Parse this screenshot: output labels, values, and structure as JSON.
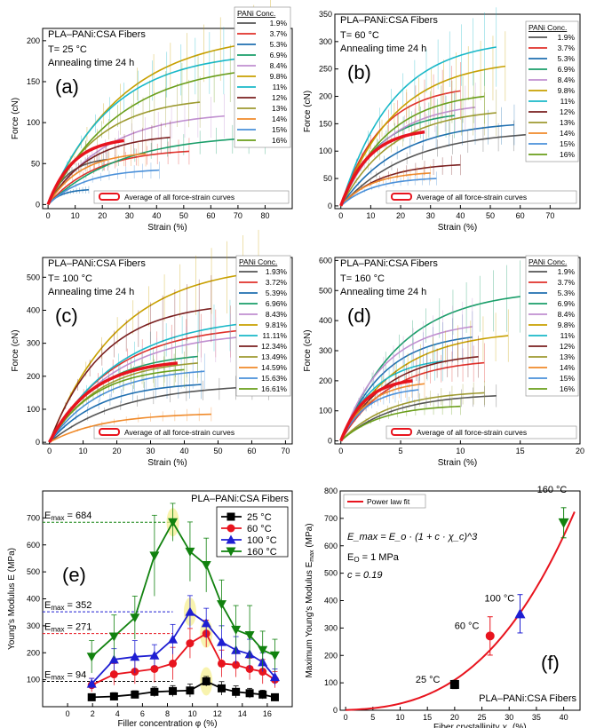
{
  "chart_data": [
    {
      "type": "line",
      "panel_label": "(a)",
      "title": "PLA–PANi:CSA Fibers",
      "temp": "T= 25 °C",
      "anneal": "Annealing time 24 h",
      "xlabel": "Strain (%)",
      "ylabel": "Force (cN)",
      "xlim": [
        -2,
        90
      ],
      "ylim": [
        -5,
        215
      ],
      "xticks": [
        0,
        10,
        20,
        30,
        40,
        50,
        60,
        70,
        80
      ],
      "yticks": [
        0,
        50,
        100,
        150,
        200
      ],
      "legend_title": "PANi Conc.",
      "avg_label": "Average of all force-strain curves",
      "series": [
        {
          "name": "1.9%",
          "color": "#555555",
          "max_strain": 22,
          "max_force": 55
        },
        {
          "name": "3.7%",
          "color": "#e0302a",
          "max_strain": 52,
          "max_force": 65
        },
        {
          "name": "5.3%",
          "color": "#1f6fb0",
          "max_strain": 15,
          "max_force": 18
        },
        {
          "name": "6.9%",
          "color": "#1a9e6a",
          "max_strain": 80,
          "max_force": 82
        },
        {
          "name": "8.4%",
          "color": "#c08fd0",
          "max_strain": 65,
          "max_force": 108
        },
        {
          "name": "9.8%",
          "color": "#c8a000",
          "max_strain": 82,
          "max_force": 200
        },
        {
          "name": "11%",
          "color": "#19b8c8",
          "max_strain": 70,
          "max_force": 178
        },
        {
          "name": "12%",
          "color": "#7a1f1f",
          "max_strain": 45,
          "max_force": 82
        },
        {
          "name": "13%",
          "color": "#9e9a30",
          "max_strain": 56,
          "max_force": 125
        },
        {
          "name": "14%",
          "color": "#f08a2a",
          "max_strain": 36,
          "max_force": 62
        },
        {
          "name": "15%",
          "color": "#4a90d9",
          "max_strain": 41,
          "max_force": 42
        },
        {
          "name": "16%",
          "color": "#6a9e1a",
          "max_strain": 79,
          "max_force": 165
        }
      ],
      "average": {
        "max_strain": 28,
        "max_force": 78
      }
    },
    {
      "type": "line",
      "panel_label": "(b)",
      "title": "PLA–PANi:CSA Fibers",
      "temp": "T= 60 °C",
      "anneal": "Annealing time 24 h",
      "xlabel": "Strain (%)",
      "ylabel": "Force (cN)",
      "xlim": [
        -2,
        80
      ],
      "ylim": [
        -5,
        350
      ],
      "xticks": [
        0,
        10,
        20,
        30,
        40,
        50,
        60,
        70
      ],
      "yticks": [
        0,
        50,
        100,
        150,
        200,
        250,
        300,
        350
      ],
      "legend_title": "PANi Conc.",
      "avg_label": "Average of all force-strain curves",
      "series": [
        {
          "name": "1.9%",
          "color": "#555555",
          "max_strain": 68,
          "max_force": 132
        },
        {
          "name": "3.7%",
          "color": "#e0302a",
          "max_strain": 40,
          "max_force": 210
        },
        {
          "name": "5.3%",
          "color": "#1f6fb0",
          "max_strain": 58,
          "max_force": 148
        },
        {
          "name": "6.9%",
          "color": "#1a9e6a",
          "max_strain": 38,
          "max_force": 165
        },
        {
          "name": "8.4%",
          "color": "#c08fd0",
          "max_strain": 45,
          "max_force": 180
        },
        {
          "name": "9.8%",
          "color": "#c8a000",
          "max_strain": 55,
          "max_force": 255
        },
        {
          "name": "11%",
          "color": "#19b8c8",
          "max_strain": 52,
          "max_force": 290
        },
        {
          "name": "12%",
          "color": "#7a1f1f",
          "max_strain": 40,
          "max_force": 75
        },
        {
          "name": "13%",
          "color": "#9e9a30",
          "max_strain": 52,
          "max_force": 170
        },
        {
          "name": "14%",
          "color": "#f08a2a",
          "max_strain": 30,
          "max_force": 60
        },
        {
          "name": "15%",
          "color": "#4a90d9",
          "max_strain": 32,
          "max_force": 50
        },
        {
          "name": "16%",
          "color": "#6a9e1a",
          "max_strain": 48,
          "max_force": 200
        }
      ],
      "average": {
        "max_strain": 28,
        "max_force": 135
      }
    },
    {
      "type": "line",
      "panel_label": "(c)",
      "title": "PLA–PANi:CSA Fibers",
      "temp": "T= 100 °C",
      "anneal": "Annealing time 24 h",
      "xlabel": "Strain (%)",
      "ylabel": "Force (cN)",
      "xlim": [
        -2,
        72
      ],
      "ylim": [
        -5,
        560
      ],
      "xticks": [
        0,
        10,
        20,
        30,
        40,
        50,
        60,
        70
      ],
      "yticks": [
        0,
        100,
        200,
        300,
        400,
        500
      ],
      "legend_title": "PANi Conc.",
      "avg_label": "Average of all force-strain curves",
      "series": [
        {
          "name": "1.93%",
          "color": "#555555",
          "max_strain": 65,
          "max_force": 170
        },
        {
          "name": "3.72%",
          "color": "#e0302a",
          "max_strain": 58,
          "max_force": 340
        },
        {
          "name": "5.39%",
          "color": "#1f6fb0",
          "max_strain": 45,
          "max_force": 175
        },
        {
          "name": "6.96%",
          "color": "#1a9e6a",
          "max_strain": 44,
          "max_force": 260
        },
        {
          "name": "8.43%",
          "color": "#c08fd0",
          "max_strain": 58,
          "max_force": 320
        },
        {
          "name": "9.81%",
          "color": "#c8a000",
          "max_strain": 62,
          "max_force": 515
        },
        {
          "name": "11.11%",
          "color": "#19b8c8",
          "max_strain": 63,
          "max_force": 365
        },
        {
          "name": "12.34%",
          "color": "#7a1f1f",
          "max_strain": 48,
          "max_force": 405
        },
        {
          "name": "13.49%",
          "color": "#9e9a30",
          "max_strain": 44,
          "max_force": 240
        },
        {
          "name": "14.59%",
          "color": "#f08a2a",
          "max_strain": 48,
          "max_force": 85
        },
        {
          "name": "15.63%",
          "color": "#4a90d9",
          "max_strain": 46,
          "max_force": 215
        },
        {
          "name": "16.61%",
          "color": "#6a9e1a",
          "max_strain": 40,
          "max_force": 220
        }
      ],
      "average": {
        "max_strain": 38,
        "max_force": 240
      }
    },
    {
      "type": "line",
      "panel_label": "(d)",
      "title": "PLA–PANi:CSA Fibers",
      "temp": "T= 160 °C",
      "anneal": "Annealing time 24 h",
      "xlabel": "Strain (%)",
      "ylabel": "Force (cN)",
      "xlim": [
        -0.5,
        20
      ],
      "ylim": [
        -10,
        610
      ],
      "xticks": [
        0,
        5,
        10,
        15,
        20
      ],
      "yticks": [
        0,
        100,
        200,
        300,
        400,
        500,
        600
      ],
      "legend_title": "PANi Conc.",
      "avg_label": "Average of all force-strain curves",
      "series": [
        {
          "name": "1.9%",
          "color": "#555555",
          "max_strain": 13,
          "max_force": 150
        },
        {
          "name": "3.7%",
          "color": "#e0302a",
          "max_strain": 12,
          "max_force": 260
        },
        {
          "name": "5.3%",
          "color": "#1f6fb0",
          "max_strain": 11,
          "max_force": 345
        },
        {
          "name": "6.9%",
          "color": "#1a9e6a",
          "max_strain": 15,
          "max_force": 480
        },
        {
          "name": "8.4%",
          "color": "#c08fd0",
          "max_strain": 11,
          "max_force": 380
        },
        {
          "name": "9.8%",
          "color": "#c8a000",
          "max_strain": 14,
          "max_force": 350
        },
        {
          "name": "11%",
          "color": "#19b8c8",
          "max_strain": 8.5,
          "max_force": 265
        },
        {
          "name": "12%",
          "color": "#7a1f1f",
          "max_strain": 11.5,
          "max_force": 280
        },
        {
          "name": "13%",
          "color": "#9e9a30",
          "max_strain": 12,
          "max_force": 160
        },
        {
          "name": "14%",
          "color": "#f08a2a",
          "max_strain": 7,
          "max_force": 190
        },
        {
          "name": "15%",
          "color": "#4a90d9",
          "max_strain": 6.5,
          "max_force": 170
        },
        {
          "name": "16%",
          "color": "#6a9e1a",
          "max_strain": 10,
          "max_force": 115
        }
      ],
      "average": {
        "max_strain": 6,
        "max_force": 200
      }
    },
    {
      "type": "line",
      "panel_label": "(e)",
      "title": "PLA–PANi:CSA Fibers",
      "xlabel": "Filler concentration φ (%)",
      "ylabel": "Young's Modulus  E (MPa)",
      "xlim": [
        -2,
        18
      ],
      "ylim": [
        0,
        800
      ],
      "xticks": [
        0,
        2,
        4,
        6,
        8,
        10,
        12,
        14,
        16
      ],
      "yticks": [
        100,
        200,
        300,
        400,
        500,
        600,
        700
      ],
      "x": [
        1.93,
        3.72,
        5.39,
        6.96,
        8.43,
        9.81,
        11.11,
        12.34,
        13.49,
        14.59,
        15.63,
        16.61
      ],
      "series": [
        {
          "name": "25  °C",
          "color": "#000000",
          "marker": "square",
          "values": [
            35,
            38,
            45,
            55,
            58,
            60,
            94,
            68,
            55,
            50,
            45,
            35
          ],
          "errors": [
            12,
            14,
            14,
            18,
            20,
            24,
            18,
            25,
            22,
            18,
            16,
            12
          ]
        },
        {
          "name": "60  °C",
          "color": "#e8141e",
          "marker": "circle",
          "values": [
            80,
            120,
            130,
            140,
            160,
            235,
            271,
            160,
            155,
            140,
            130,
            100
          ],
          "errors": [
            25,
            40,
            45,
            50,
            60,
            55,
            50,
            50,
            45,
            40,
            45,
            30
          ]
        },
        {
          "name": "100  °C",
          "color": "#1e1ed2",
          "marker": "triangle-up",
          "values": [
            85,
            175,
            185,
            190,
            250,
            352,
            310,
            240,
            210,
            195,
            165,
            110
          ],
          "errors": [
            20,
            40,
            60,
            40,
            55,
            60,
            55,
            60,
            50,
            55,
            35,
            30
          ]
        },
        {
          "name": "160  °C",
          "color": "#11820f",
          "marker": "triangle-down",
          "values": [
            185,
            260,
            330,
            560,
            684,
            575,
            525,
            380,
            285,
            265,
            210,
            190
          ],
          "errors": [
            60,
            80,
            80,
            150,
            70,
            110,
            100,
            90,
            90,
            110,
            70,
            60
          ]
        }
      ],
      "max_labels": [
        {
          "text": "E",
          "sub": "max",
          "value": "= 684",
          "color": "#11820f",
          "y": 684
        },
        {
          "text": "E",
          "sub": "max",
          "value": "= 352",
          "color": "#1e1ed2",
          "y": 352
        },
        {
          "text": "E",
          "sub": "max",
          "value": "= 271",
          "color": "#e8141e",
          "y": 271
        },
        {
          "text": "E",
          "sub": "max",
          "value": "= 94",
          "color": "#000000",
          "y": 94
        }
      ]
    },
    {
      "type": "scatter",
      "panel_label": "(f)",
      "title": "PLA–PANi:CSA Fibers",
      "xlabel_main": "Fiber crystallinity ",
      "xlabel_sym": "χ",
      "xlabel_sub": "c",
      "xlabel_unit": " (%)",
      "ylabel_main": "Maximum Young's Modulus E",
      "ylabel_sub": "max",
      "ylabel_unit": " (MPa)",
      "xlim": [
        -1,
        43
      ],
      "ylim": [
        0,
        800
      ],
      "xticks": [
        0,
        5,
        10,
        15,
        20,
        25,
        30,
        35,
        40
      ],
      "yticks": [
        0,
        100,
        200,
        300,
        400,
        500,
        600,
        700,
        800
      ],
      "legend": "Power law fit",
      "equation": "E_max = E_o · (1 + c · χ_c)^3",
      "eq_E0": "E",
      "eq_E0_sub": "O",
      "eq_E0_val": " = 1 MPa",
      "eq_c": "c = 0.19",
      "fit": {
        "E0": 1,
        "c": 0.19
      },
      "points": [
        {
          "label": "25 °C",
          "x": 20,
          "y": 94,
          "err": 15,
          "color": "#000000",
          "marker": "square"
        },
        {
          "label": "60 °C",
          "x": 26.5,
          "y": 271,
          "err": 70,
          "color": "#e8141e",
          "marker": "circle"
        },
        {
          "label": "100 °C",
          "x": 32,
          "y": 352,
          "err": 70,
          "color": "#1e1ed2",
          "marker": "triangle-up"
        },
        {
          "label": "160 °C",
          "x": 40,
          "y": 684,
          "err": 55,
          "color": "#11820f",
          "marker": "triangle-down"
        }
      ]
    }
  ]
}
